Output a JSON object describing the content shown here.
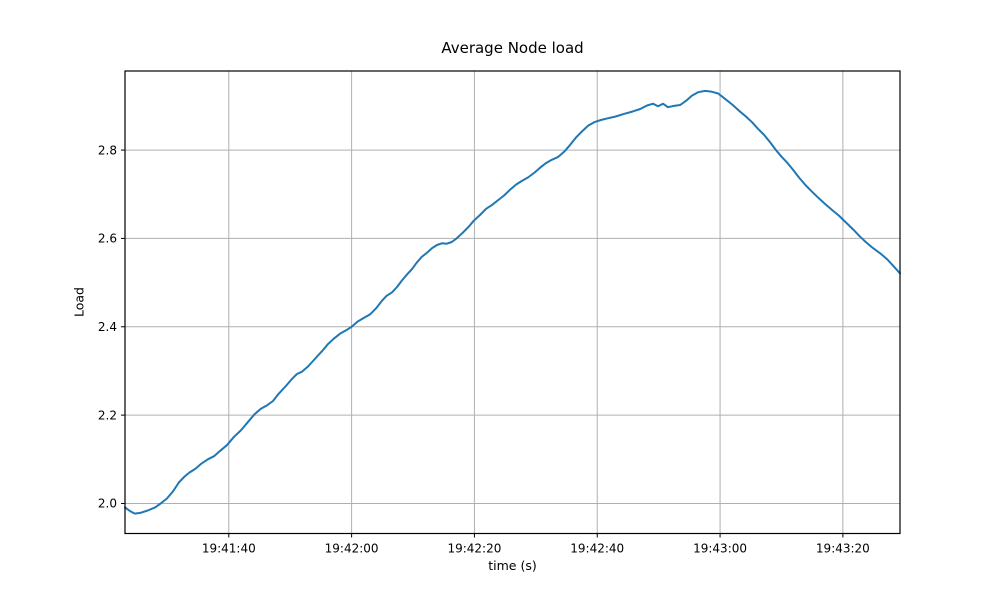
{
  "chart_data": {
    "type": "line",
    "title": "Average Node load",
    "xlabel": "time (s)",
    "ylabel": "Load",
    "x_unit": "seconds since 19:40:00",
    "xlim": [
      83.1,
      209.3
    ],
    "ylim": [
      1.932,
      2.979
    ],
    "grid": true,
    "legend": "none",
    "line_color": "#1f77b4",
    "grid_color": "#b0b0b0",
    "spine_color": "#000000",
    "x_ticks": [
      {
        "t": 100,
        "label": "19:41:40"
      },
      {
        "t": 120,
        "label": "19:42:00"
      },
      {
        "t": 140,
        "label": "19:42:20"
      },
      {
        "t": 160,
        "label": "19:42:40"
      },
      {
        "t": 180,
        "label": "19:43:00"
      },
      {
        "t": 200,
        "label": "19:43:20"
      }
    ],
    "y_ticks": [
      2.0,
      2.2,
      2.4,
      2.6,
      2.8
    ],
    "points": [
      [
        83.1,
        1.991
      ],
      [
        83.9,
        1.983
      ],
      [
        84.7,
        1.977
      ],
      [
        85.7,
        1.979
      ],
      [
        86.8,
        1.984
      ],
      [
        88.0,
        1.991
      ],
      [
        88.9,
        2.0
      ],
      [
        89.9,
        2.011
      ],
      [
        90.9,
        2.027
      ],
      [
        91.9,
        2.048
      ],
      [
        92.8,
        2.061
      ],
      [
        93.6,
        2.07
      ],
      [
        94.6,
        2.079
      ],
      [
        95.6,
        2.091
      ],
      [
        96.6,
        2.1
      ],
      [
        97.6,
        2.107
      ],
      [
        98.5,
        2.118
      ],
      [
        99.7,
        2.132
      ],
      [
        100.8,
        2.15
      ],
      [
        102.0,
        2.166
      ],
      [
        103.1,
        2.184
      ],
      [
        104.2,
        2.202
      ],
      [
        105.2,
        2.214
      ],
      [
        106.2,
        2.222
      ],
      [
        107.2,
        2.232
      ],
      [
        108.1,
        2.248
      ],
      [
        109.3,
        2.266
      ],
      [
        110.3,
        2.282
      ],
      [
        111.1,
        2.293
      ],
      [
        111.9,
        2.298
      ],
      [
        112.9,
        2.31
      ],
      [
        114.0,
        2.327
      ],
      [
        115.2,
        2.345
      ],
      [
        116.1,
        2.36
      ],
      [
        117.1,
        2.373
      ],
      [
        118.1,
        2.384
      ],
      [
        119.1,
        2.392
      ],
      [
        120.0,
        2.4
      ],
      [
        121.0,
        2.412
      ],
      [
        122.0,
        2.42
      ],
      [
        123.0,
        2.428
      ],
      [
        124.0,
        2.442
      ],
      [
        124.9,
        2.458
      ],
      [
        125.7,
        2.47
      ],
      [
        126.6,
        2.478
      ],
      [
        127.4,
        2.49
      ],
      [
        128.2,
        2.505
      ],
      [
        129.0,
        2.518
      ],
      [
        129.8,
        2.53
      ],
      [
        130.6,
        2.545
      ],
      [
        131.4,
        2.558
      ],
      [
        132.3,
        2.568
      ],
      [
        133.1,
        2.578
      ],
      [
        133.9,
        2.585
      ],
      [
        134.7,
        2.589
      ],
      [
        135.5,
        2.588
      ],
      [
        136.3,
        2.592
      ],
      [
        137.1,
        2.6
      ],
      [
        138.1,
        2.613
      ],
      [
        139.1,
        2.627
      ],
      [
        139.9,
        2.64
      ],
      [
        140.9,
        2.653
      ],
      [
        141.9,
        2.667
      ],
      [
        142.9,
        2.676
      ],
      [
        143.8,
        2.686
      ],
      [
        144.8,
        2.697
      ],
      [
        145.8,
        2.71
      ],
      [
        146.8,
        2.722
      ],
      [
        147.7,
        2.73
      ],
      [
        148.7,
        2.738
      ],
      [
        149.7,
        2.748
      ],
      [
        150.7,
        2.76
      ],
      [
        151.6,
        2.77
      ],
      [
        152.6,
        2.778
      ],
      [
        153.6,
        2.784
      ],
      [
        154.6,
        2.796
      ],
      [
        155.6,
        2.812
      ],
      [
        156.5,
        2.828
      ],
      [
        157.5,
        2.842
      ],
      [
        158.5,
        2.855
      ],
      [
        159.5,
        2.863
      ],
      [
        160.6,
        2.868
      ],
      [
        161.7,
        2.872
      ],
      [
        163.0,
        2.876
      ],
      [
        164.4,
        2.882
      ],
      [
        165.7,
        2.887
      ],
      [
        167.0,
        2.893
      ],
      [
        168.1,
        2.901
      ],
      [
        169.1,
        2.905
      ],
      [
        169.9,
        2.899
      ],
      [
        170.7,
        2.905
      ],
      [
        171.5,
        2.897
      ],
      [
        172.5,
        2.9
      ],
      [
        173.5,
        2.902
      ],
      [
        174.5,
        2.912
      ],
      [
        175.4,
        2.923
      ],
      [
        176.4,
        2.931
      ],
      [
        177.6,
        2.934
      ],
      [
        178.7,
        2.932
      ],
      [
        179.7,
        2.928
      ],
      [
        180.8,
        2.916
      ],
      [
        182.0,
        2.903
      ],
      [
        183.1,
        2.889
      ],
      [
        184.2,
        2.876
      ],
      [
        185.2,
        2.863
      ],
      [
        186.2,
        2.848
      ],
      [
        187.2,
        2.834
      ],
      [
        188.2,
        2.817
      ],
      [
        189.1,
        2.8
      ],
      [
        190.0,
        2.785
      ],
      [
        190.9,
        2.772
      ],
      [
        191.9,
        2.755
      ],
      [
        192.9,
        2.737
      ],
      [
        193.9,
        2.721
      ],
      [
        194.8,
        2.708
      ],
      [
        196.0,
        2.692
      ],
      [
        197.1,
        2.678
      ],
      [
        198.2,
        2.665
      ],
      [
        199.4,
        2.651
      ],
      [
        200.5,
        2.636
      ],
      [
        201.7,
        2.62
      ],
      [
        202.8,
        2.604
      ],
      [
        203.8,
        2.591
      ],
      [
        204.9,
        2.578
      ],
      [
        206.1,
        2.566
      ],
      [
        207.2,
        2.553
      ],
      [
        208.2,
        2.538
      ],
      [
        209.3,
        2.521
      ]
    ]
  }
}
